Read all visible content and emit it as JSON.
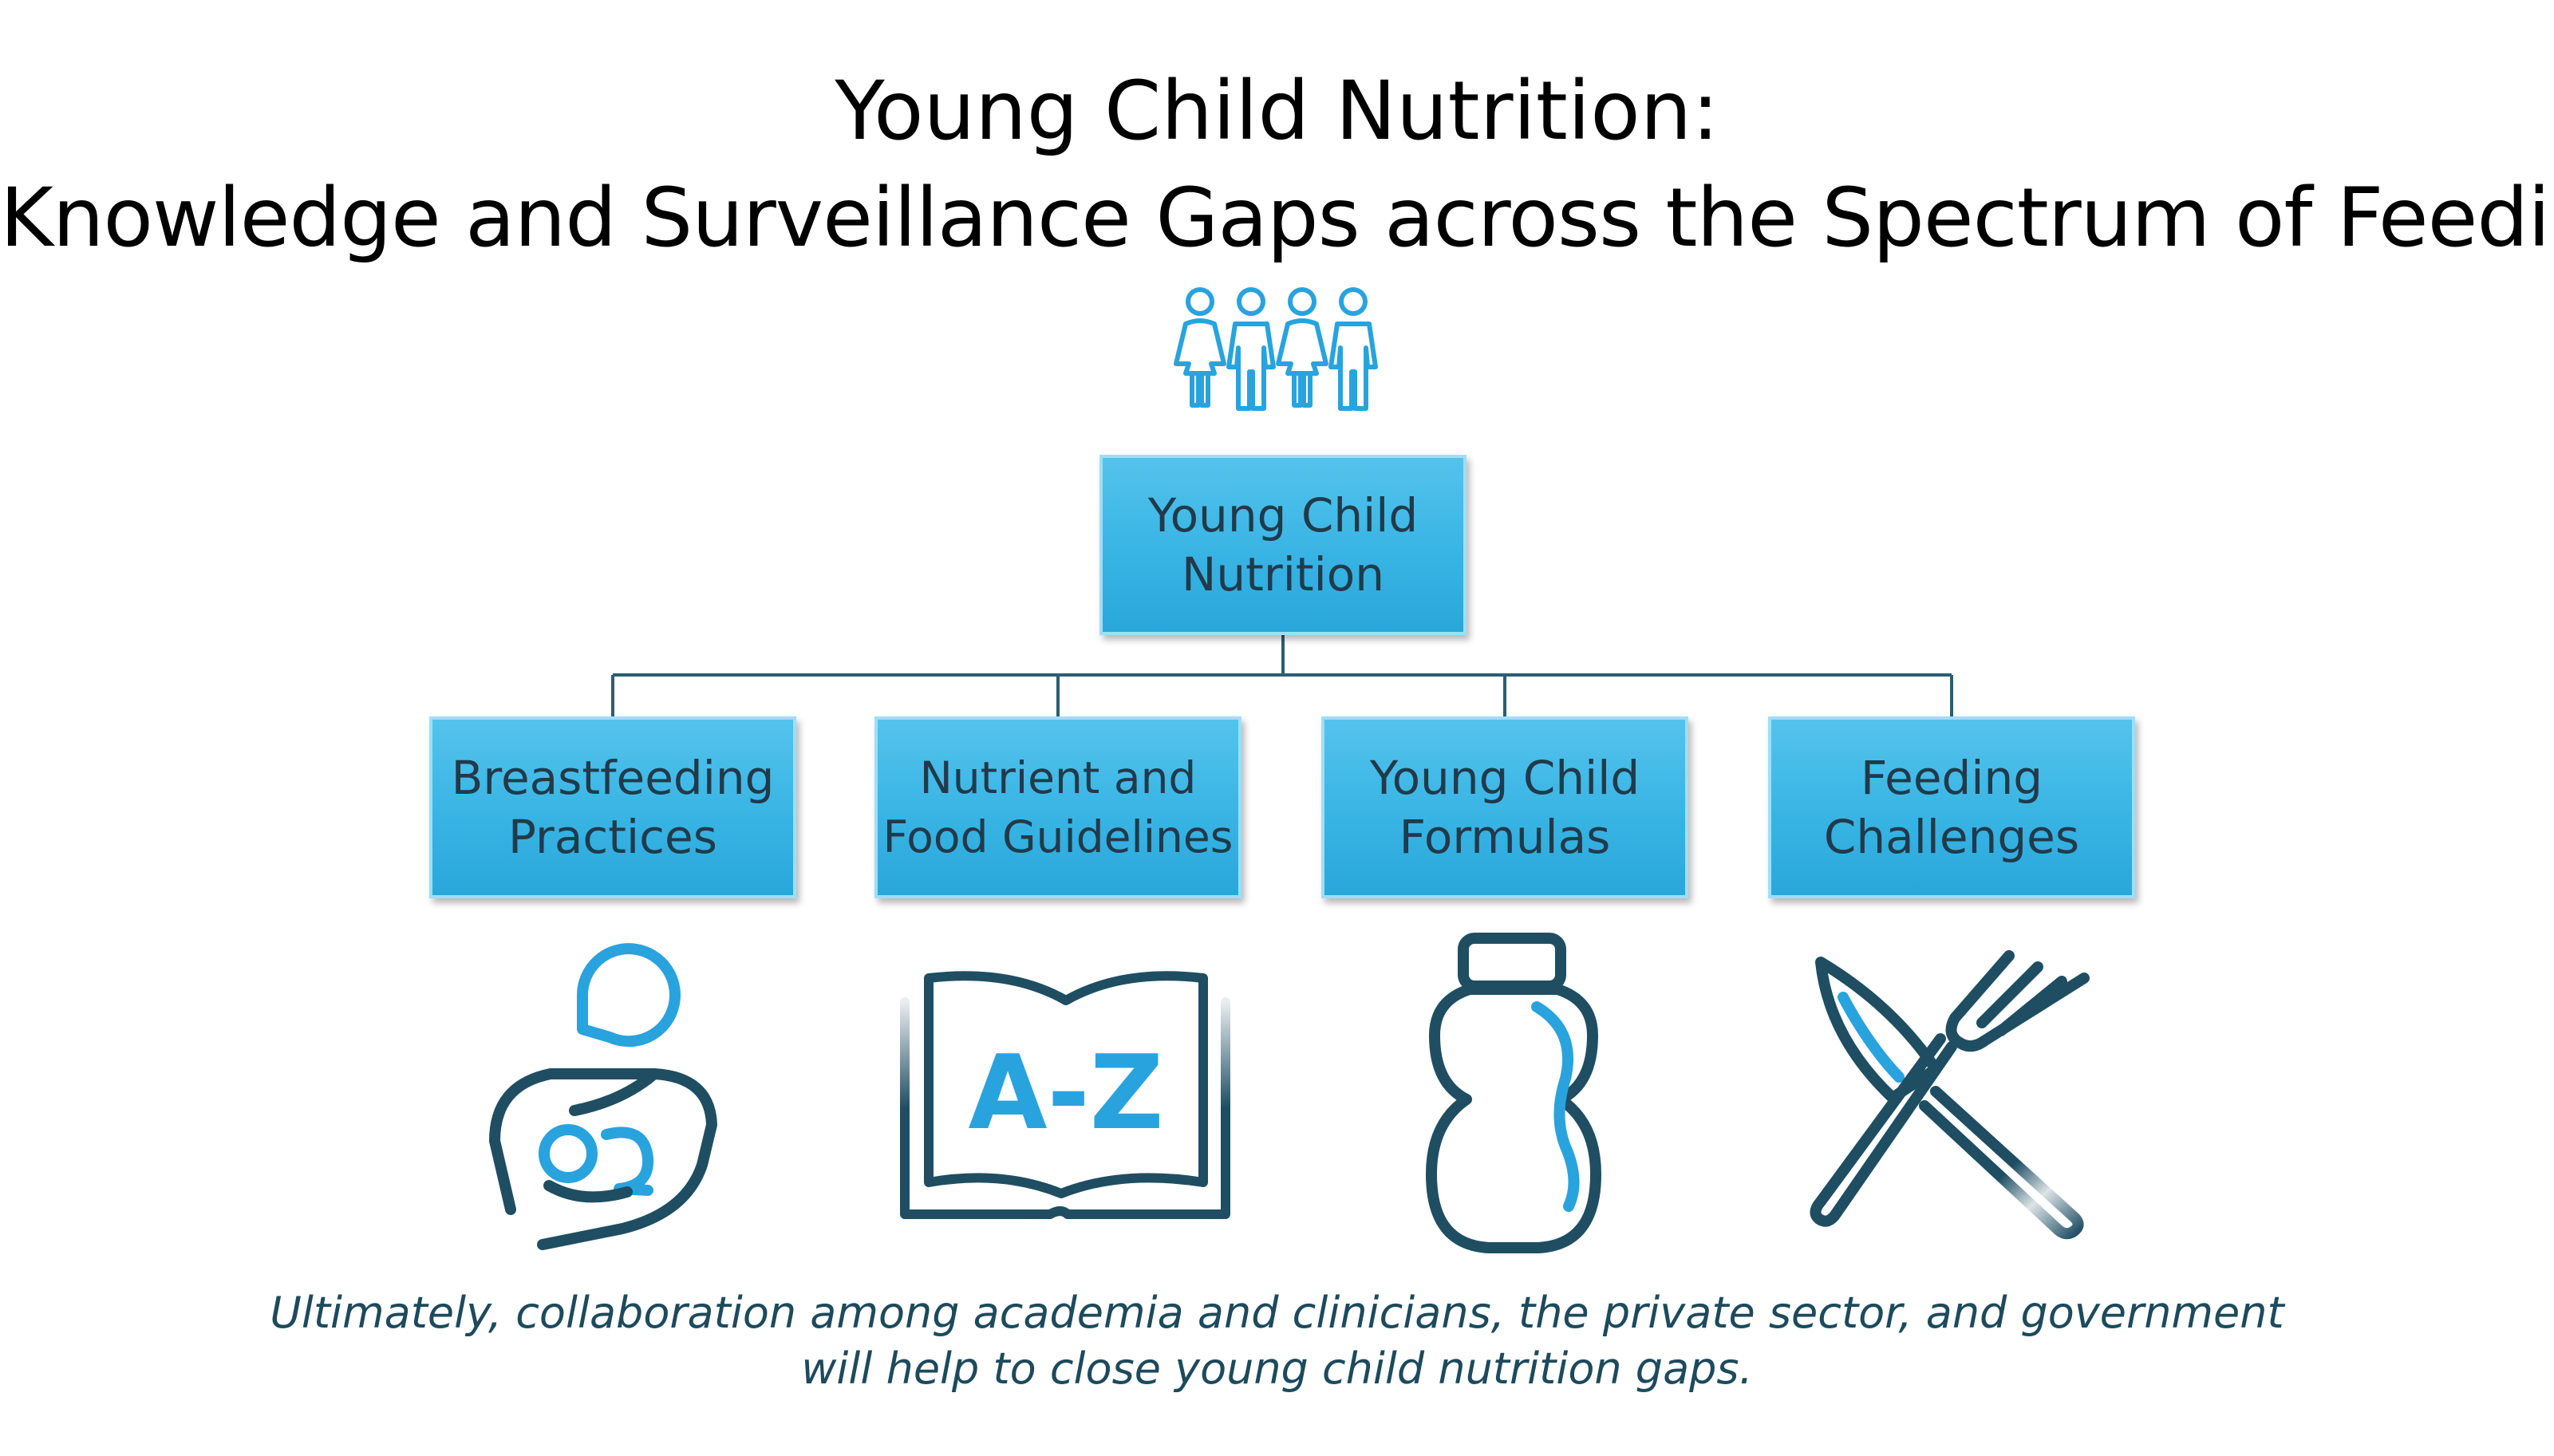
{
  "title": {
    "line1": "Young Child Nutrition:",
    "line2": "Knowledge and Surveillance Gaps across the Spectrum of Feeding"
  },
  "root": {
    "line1": "Young Child",
    "line2": "Nutrition",
    "icon": "children-group-icon"
  },
  "branches": [
    {
      "line1": "Breastfeeding",
      "line2": "Practices",
      "icon": "breastfeeding-icon"
    },
    {
      "line1": "Nutrient and",
      "line2": "Food Guidelines",
      "icon": "a-z-book-icon"
    },
    {
      "line1": "Young Child",
      "line2": "Formulas",
      "icon": "bottle-icon"
    },
    {
      "line1": "Feeding",
      "line2": "Challenges",
      "icon": "knife-fork-icon"
    }
  ],
  "footer": {
    "line1": "Ultimately, collaboration among academia and clinicians, the private sector, and government",
    "line2": "will help to close young child nutrition gaps."
  },
  "book_text": "A-Z",
  "colors": {
    "box_fill": "#38b4e4",
    "box_border": "#9ddff7",
    "icon_dark": "#1f4e63",
    "icon_light": "#29a3de",
    "footer_text": "#1d4a5c"
  }
}
